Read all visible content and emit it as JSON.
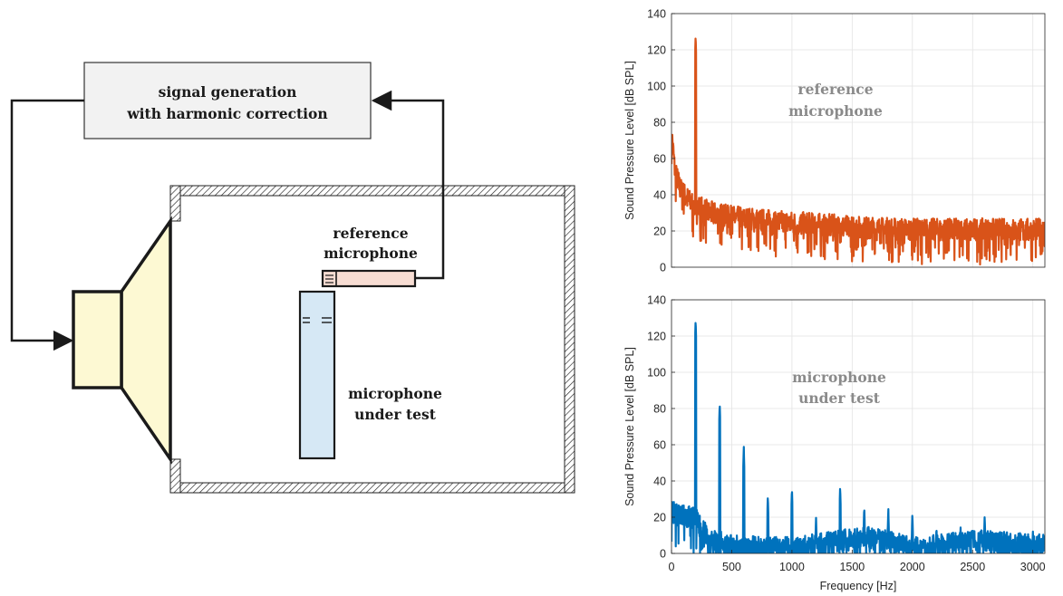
{
  "diagram": {
    "generator_label_line1": "signal generation",
    "generator_label_line2": "with harmonic correction",
    "reference_label_line1": "reference",
    "reference_label_line2": "microphone",
    "dut_label_line1": "microphone",
    "dut_label_line2": "under test",
    "colors": {
      "speaker_fill": "#fdf9d3",
      "reference_mic_fill": "#f7ddd3",
      "dut_mic_fill": "#d6e8f5",
      "generator_fill": "#f2f2f2"
    }
  },
  "chart_data": [
    {
      "type": "line",
      "name": "reference-spectrum",
      "panel_label_line1": "reference",
      "panel_label_line2": "microphone",
      "ylabel": "Sound Pressure Level [dB SPL]",
      "xlabel": "",
      "xlim": [
        0,
        3100
      ],
      "ylim": [
        0,
        140
      ],
      "xticks": [
        "0",
        "500",
        "1000",
        "1500",
        "2000",
        "2500",
        "3000"
      ],
      "yticks": [
        "0",
        "20",
        "40",
        "60",
        "80",
        "100",
        "120",
        "140"
      ],
      "grid": true,
      "color": "#d95319",
      "baseline": [
        [
          0,
          75
        ],
        [
          30,
          52
        ],
        [
          80,
          42
        ],
        [
          150,
          36
        ],
        [
          300,
          30
        ],
        [
          500,
          27
        ],
        [
          800,
          25
        ],
        [
          1200,
          23
        ],
        [
          1600,
          21
        ],
        [
          2000,
          20
        ],
        [
          2500,
          20
        ],
        [
          3100,
          20
        ]
      ],
      "peaks": [
        [
          200,
          128
        ]
      ]
    },
    {
      "type": "line",
      "name": "dut-spectrum",
      "panel_label_line1": "microphone",
      "panel_label_line2": "under test",
      "ylabel": "Sound Pressure Level [dB SPL]",
      "xlabel": "Frequency [Hz]",
      "xlim": [
        0,
        3100
      ],
      "ylim": [
        0,
        140
      ],
      "xticks": [
        "0",
        "500",
        "1000",
        "1500",
        "2000",
        "2500",
        "3000"
      ],
      "yticks": [
        "0",
        "20",
        "40",
        "60",
        "80",
        "100",
        "120",
        "140"
      ],
      "grid": true,
      "color": "#0072bd",
      "baseline": [
        [
          0,
          22
        ],
        [
          100,
          20
        ],
        [
          200,
          18
        ],
        [
          300,
          8
        ],
        [
          500,
          3
        ],
        [
          1000,
          2
        ],
        [
          1600,
          8
        ],
        [
          1800,
          6
        ],
        [
          2000,
          2
        ],
        [
          2500,
          6
        ],
        [
          3100,
          4
        ]
      ],
      "peaks": [
        [
          200,
          129
        ],
        [
          400,
          83
        ],
        [
          600,
          59
        ],
        [
          800,
          32
        ],
        [
          1000,
          36
        ],
        [
          1200,
          20
        ],
        [
          1400,
          37
        ],
        [
          1600,
          26
        ],
        [
          1800,
          25
        ],
        [
          2000,
          22
        ],
        [
          2200,
          15
        ],
        [
          2400,
          15
        ],
        [
          2600,
          21
        ],
        [
          2800,
          12
        ],
        [
          3000,
          13
        ]
      ]
    }
  ]
}
